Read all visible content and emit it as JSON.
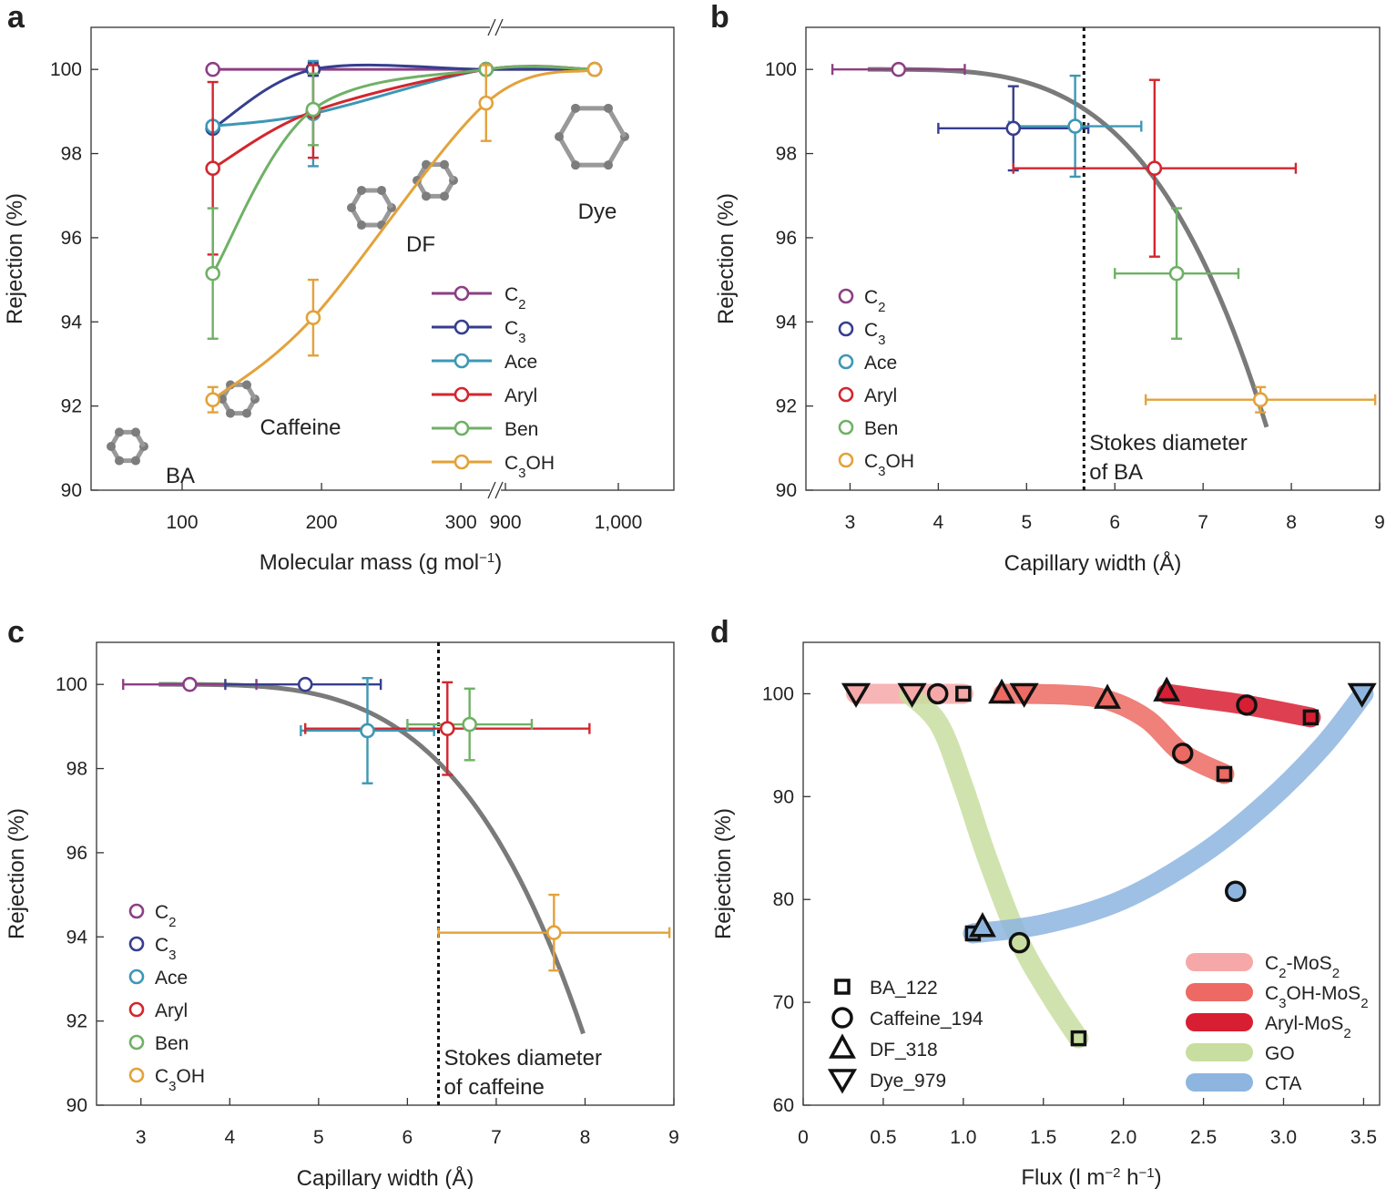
{
  "figure": {
    "panels": [
      "a",
      "b",
      "c",
      "d"
    ]
  },
  "chart_data": [
    {
      "id": "a",
      "panel_label": "a",
      "type": "line",
      "xlabel": "Molecular mass (g mol",
      "xlabel_sup": "−1",
      "xlabel_close": ")",
      "ylabel": "Rejection (%)",
      "ylim": [
        90,
        101
      ],
      "x_axis": "broken",
      "x_ticks": [
        100,
        200,
        300,
        900,
        1000
      ],
      "x_tick_labels": [
        "100",
        "200",
        "300",
        "900",
        "1,000"
      ],
      "y_ticks": [
        90,
        92,
        94,
        96,
        98,
        100
      ],
      "y_tick_labels": [
        "90",
        "92",
        "94",
        "96",
        "98",
        "100"
      ],
      "grid": false,
      "molecules": [
        {
          "label": "BA",
          "mass": 122
        },
        {
          "label": "Caffeine",
          "mass": 194
        },
        {
          "label": "DF",
          "mass": 318
        },
        {
          "label": "Dye",
          "mass": 979
        }
      ],
      "series": [
        {
          "name": "C",
          "sub": "2",
          "name_tail": "",
          "color": "#8c3f85",
          "points": [
            {
              "x": 122,
              "y": 100
            },
            {
              "x": 194,
              "y": 100
            },
            {
              "x": 318,
              "y": 100
            },
            {
              "x": 979,
              "y": 100
            }
          ],
          "errors": [
            0,
            0.15,
            0,
            0
          ]
        },
        {
          "name": "C",
          "sub": "3",
          "name_tail": "",
          "color": "#363e8f",
          "points": [
            {
              "x": 122,
              "y": 98.6
            },
            {
              "x": 194,
              "y": 100
            },
            {
              "x": 318,
              "y": 100
            },
            {
              "x": 979,
              "y": 100
            }
          ],
          "errors": [
            0,
            0.15,
            0,
            0
          ]
        },
        {
          "name": "Ace",
          "sub": "",
          "name_tail": "",
          "color": "#3d97b5",
          "points": [
            {
              "x": 122,
              "y": 98.65
            },
            {
              "x": 194,
              "y": 98.95
            },
            {
              "x": 318,
              "y": 100
            },
            {
              "x": 979,
              "y": 100
            }
          ],
          "errors": [
            0,
            1.25,
            0,
            0
          ]
        },
        {
          "name": "Aryl",
          "sub": "",
          "name_tail": "",
          "color": "#d3262e",
          "points": [
            {
              "x": 122,
              "y": 97.65
            },
            {
              "x": 194,
              "y": 99.0
            },
            {
              "x": 318,
              "y": 100
            },
            {
              "x": 979,
              "y": 100
            }
          ],
          "errors": [
            2.05,
            1.1,
            0,
            0
          ]
        },
        {
          "name": "Ben",
          "sub": "",
          "name_tail": "",
          "color": "#6fb166",
          "points": [
            {
              "x": 122,
              "y": 95.15
            },
            {
              "x": 194,
              "y": 99.05
            },
            {
              "x": 318,
              "y": 100
            },
            {
              "x": 979,
              "y": 100
            }
          ],
          "errors": [
            1.55,
            0.85,
            0,
            0
          ]
        },
        {
          "name": "C",
          "sub": "3",
          "name_tail": "OH",
          "color": "#e3a23a",
          "points": [
            {
              "x": 122,
              "y": 92.15
            },
            {
              "x": 194,
              "y": 94.1
            },
            {
              "x": 318,
              "y": 99.2
            },
            {
              "x": 979,
              "y": 100
            }
          ],
          "errors": [
            0.3,
            0.9,
            0.9,
            0
          ]
        }
      ],
      "legend_position": "bottom-right"
    },
    {
      "id": "b",
      "panel_label": "b",
      "type": "scatter",
      "xlabel": "Capillary width (Å)",
      "ylabel": "Rejection (%)",
      "xlim": [
        2.5,
        9
      ],
      "ylim": [
        90,
        101
      ],
      "x_ticks": [
        3,
        4,
        5,
        6,
        7,
        8,
        9
      ],
      "y_ticks": [
        90,
        92,
        94,
        96,
        98,
        100
      ],
      "grid": false,
      "annotation": {
        "text_line1": "Stokes diameter",
        "text_line2": "of BA",
        "x": 5.65
      },
      "fit_curve_color": "#7a7a7a",
      "series": [
        {
          "name": "C",
          "sub": "2",
          "name_tail": "",
          "color": "#8c3f85",
          "x": 3.55,
          "y": 100,
          "xerr": [
            2.8,
            4.3
          ],
          "yerr": 0
        },
        {
          "name": "C",
          "sub": "3",
          "name_tail": "",
          "color": "#363e8f",
          "x": 4.85,
          "y": 98.6,
          "xerr": [
            4.0,
            5.7
          ],
          "yerr": 1.0
        },
        {
          "name": "Ace",
          "sub": "",
          "name_tail": "",
          "color": "#3d97b5",
          "x": 5.55,
          "y": 98.65,
          "xerr": [
            4.8,
            6.3
          ],
          "yerr": 1.2
        },
        {
          "name": "Aryl",
          "sub": "",
          "name_tail": "",
          "color": "#d3262e",
          "x": 6.45,
          "y": 97.65,
          "xerr": [
            4.85,
            8.05
          ],
          "yerr": 2.1
        },
        {
          "name": "Ben",
          "sub": "",
          "name_tail": "",
          "color": "#6fb166",
          "x": 6.7,
          "y": 95.15,
          "xerr": [
            6.0,
            7.4
          ],
          "yerr": 1.55
        },
        {
          "name": "C",
          "sub": "3",
          "name_tail": "OH",
          "color": "#e3a23a",
          "x": 7.65,
          "y": 92.15,
          "xerr": [
            6.35,
            8.95
          ],
          "yerr": 0.3
        }
      ],
      "legend_position": "bottom-left"
    },
    {
      "id": "c",
      "panel_label": "c",
      "type": "scatter",
      "xlabel": "Capillary width (Å)",
      "ylabel": "Rejection (%)",
      "xlim": [
        2.5,
        9
      ],
      "ylim": [
        90,
        101
      ],
      "x_ticks": [
        3,
        4,
        5,
        6,
        7,
        8,
        9
      ],
      "y_ticks": [
        90,
        92,
        94,
        96,
        98,
        100
      ],
      "grid": false,
      "annotation": {
        "text_line1": "Stokes diameter",
        "text_line2": "of caffeine",
        "x": 6.35
      },
      "fit_curve_color": "#7a7a7a",
      "series": [
        {
          "name": "C",
          "sub": "2",
          "name_tail": "",
          "color": "#8c3f85",
          "x": 3.55,
          "y": 100,
          "xerr": [
            2.8,
            4.3
          ],
          "yerr": 0
        },
        {
          "name": "C",
          "sub": "3",
          "name_tail": "",
          "color": "#363e8f",
          "x": 4.85,
          "y": 100,
          "xerr": [
            3.95,
            5.7
          ],
          "yerr": 0
        },
        {
          "name": "Ace",
          "sub": "",
          "name_tail": "",
          "color": "#3d97b5",
          "x": 5.55,
          "y": 98.9,
          "xerr": [
            4.8,
            6.3
          ],
          "yerr": 1.25
        },
        {
          "name": "Aryl",
          "sub": "",
          "name_tail": "",
          "color": "#d3262e",
          "x": 6.45,
          "y": 98.95,
          "xerr": [
            4.85,
            8.05
          ],
          "yerr": 1.1
        },
        {
          "name": "Ben",
          "sub": "",
          "name_tail": "",
          "color": "#6fb166",
          "x": 6.7,
          "y": 99.05,
          "xerr": [
            6.0,
            7.4
          ],
          "yerr": 0.85
        },
        {
          "name": "C",
          "sub": "3",
          "name_tail": "OH",
          "color": "#e3a23a",
          "x": 7.65,
          "y": 94.1,
          "xerr": [
            6.35,
            8.95
          ],
          "yerr": 0.9
        }
      ],
      "legend_position": "bottom-left"
    },
    {
      "id": "d",
      "panel_label": "d",
      "type": "scatter",
      "xlabel": "Flux (l m",
      "xlabel_sup1": "−2",
      "xlabel_mid": " h",
      "xlabel_sup2": "−1",
      "xlabel_close": ")",
      "ylabel": "Rejection (%)",
      "xlim": [
        0,
        3.6
      ],
      "ylim": [
        60,
        105
      ],
      "x_ticks": [
        0,
        0.5,
        1.0,
        1.5,
        2.0,
        2.5,
        3.0,
        3.5
      ],
      "x_tick_labels": [
        "0",
        "0.5",
        "1.0",
        "1.5",
        "2.0",
        "2.5",
        "3.0",
        "3.5"
      ],
      "y_ticks": [
        60,
        70,
        80,
        90,
        100
      ],
      "grid": false,
      "marker_legend": [
        {
          "label": "BA_122",
          "marker": "square"
        },
        {
          "label": "Caffeine_194",
          "marker": "circle"
        },
        {
          "label": "DF_318",
          "marker": "triangle-up"
        },
        {
          "label": "Dye_979",
          "marker": "triangle-down"
        }
      ],
      "membranes": [
        {
          "name": "C",
          "sub": "2",
          "tail": "-MoS",
          "sub2": "2",
          "color": "#f6a8a8",
          "band": [
            [
              0.33,
              100
            ],
            [
              0.68,
              100
            ],
            [
              0.85,
              100
            ],
            [
              1.0,
              100
            ]
          ],
          "points": [
            {
              "marker": "triangle-down",
              "x": 0.33,
              "y": 100
            },
            {
              "marker": "triangle-down",
              "x": 0.68,
              "y": 100
            },
            {
              "marker": "circle",
              "x": 0.84,
              "y": 100
            },
            {
              "marker": "square",
              "x": 1.0,
              "y": 100
            }
          ]
        },
        {
          "name": "C",
          "sub": "3",
          "tail": "OH-MoS",
          "sub2": "2",
          "color": "#ec6a63",
          "band": [
            [
              1.25,
              100
            ],
            [
              1.65,
              99.9
            ],
            [
              1.9,
              99.4
            ],
            [
              2.15,
              97.5
            ],
            [
              2.37,
              94.2
            ],
            [
              2.63,
              92.2
            ]
          ],
          "points": [
            {
              "marker": "triangle-up",
              "x": 1.24,
              "y": 100
            },
            {
              "marker": "triangle-down",
              "x": 1.38,
              "y": 100
            },
            {
              "marker": "triangle-up",
              "x": 1.9,
              "y": 99.5
            },
            {
              "marker": "circle",
              "x": 2.37,
              "y": 94.2
            },
            {
              "marker": "square",
              "x": 2.63,
              "y": 92.2
            }
          ]
        },
        {
          "name": "Aryl",
          "sub": "",
          "tail": "-MoS",
          "sub2": "2",
          "color": "#d81e32",
          "band": [
            [
              2.27,
              100
            ],
            [
              2.5,
              99.5
            ],
            [
              2.77,
              98.9
            ],
            [
              3.17,
              97.7
            ]
          ],
          "points": [
            {
              "marker": "triangle-up",
              "x": 2.27,
              "y": 100.2
            },
            {
              "marker": "circle",
              "x": 2.77,
              "y": 98.9
            },
            {
              "marker": "square",
              "x": 3.17,
              "y": 97.7
            }
          ]
        },
        {
          "name": "GO",
          "sub": "",
          "tail": "",
          "sub2": "",
          "color": "#c8deA0",
          "band": [
            [
              0.66,
              100
            ],
            [
              0.85,
              97
            ],
            [
              1.0,
              91
            ],
            [
              1.15,
              84
            ],
            [
              1.35,
              76
            ],
            [
              1.55,
              70.5
            ],
            [
              1.72,
              66.5
            ]
          ],
          "points": [
            {
              "marker": "circle",
              "x": 1.35,
              "y": 75.8
            },
            {
              "marker": "square",
              "x": 1.72,
              "y": 66.5
            }
          ]
        },
        {
          "name": "CTA",
          "sub": "",
          "tail": "",
          "sub2": "",
          "color": "#8db5df",
          "band": [
            [
              1.06,
              76.7
            ],
            [
              1.5,
              77.6
            ],
            [
              2.0,
              80
            ],
            [
              2.5,
              84.5
            ],
            [
              2.9,
              89.5
            ],
            [
              3.25,
              95
            ],
            [
              3.5,
              100
            ]
          ],
          "points": [
            {
              "marker": "square",
              "x": 1.06,
              "y": 76.7
            },
            {
              "marker": "triangle-up",
              "x": 1.12,
              "y": 77.3
            },
            {
              "marker": "circle",
              "x": 2.7,
              "y": 80.8
            },
            {
              "marker": "triangle-down",
              "x": 3.49,
              "y": 100
            }
          ]
        }
      ],
      "legend_position": "bottom-right"
    }
  ]
}
